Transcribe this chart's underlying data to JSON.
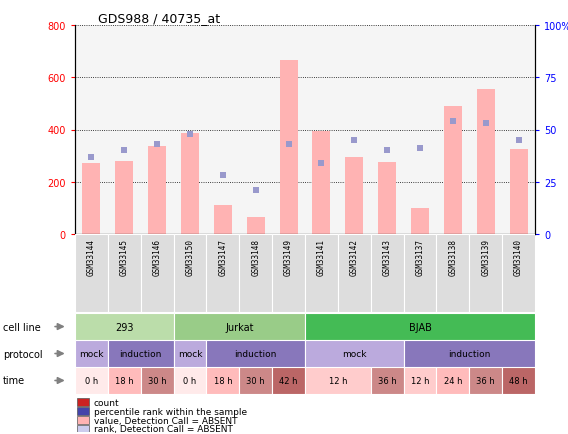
{
  "title": "GDS988 / 40735_at",
  "samples": [
    "GSM33144",
    "GSM33145",
    "GSM33146",
    "GSM33150",
    "GSM33147",
    "GSM33148",
    "GSM33149",
    "GSM33141",
    "GSM33142",
    "GSM33143",
    "GSM33137",
    "GSM33138",
    "GSM33139",
    "GSM33140"
  ],
  "bar_values": [
    270,
    280,
    335,
    385,
    110,
    65,
    665,
    395,
    295,
    275,
    100,
    490,
    555,
    325
  ],
  "rank_values": [
    37,
    40,
    43,
    48,
    28,
    21,
    43,
    34,
    45,
    40,
    41,
    54,
    53,
    45
  ],
  "ylim_left": [
    0,
    800
  ],
  "ylim_right": [
    0,
    100
  ],
  "yticks_left": [
    0,
    200,
    400,
    600,
    800
  ],
  "yticks_right": [
    0,
    25,
    50,
    75,
    100
  ],
  "bar_color": "#ffb3b3",
  "rank_color": "#9999cc",
  "cell_line_groups": [
    {
      "label": "293",
      "start": 0,
      "end": 3,
      "color": "#aaddaa"
    },
    {
      "label": "Jurkat",
      "start": 3,
      "end": 7,
      "color": "#88cc88"
    },
    {
      "label": "BJAB",
      "start": 7,
      "end": 14,
      "color": "#44bb55"
    }
  ],
  "protocol_groups": [
    {
      "label": "mock",
      "start": 0,
      "end": 1,
      "color": "#bbaadd"
    },
    {
      "label": "induction",
      "start": 1,
      "end": 3,
      "color": "#8877bb"
    },
    {
      "label": "mock",
      "start": 3,
      "end": 4,
      "color": "#bbaadd"
    },
    {
      "label": "induction",
      "start": 4,
      "end": 7,
      "color": "#8877bb"
    },
    {
      "label": "mock",
      "start": 7,
      "end": 10,
      "color": "#bbaadd"
    },
    {
      "label": "induction",
      "start": 10,
      "end": 14,
      "color": "#8877bb"
    }
  ],
  "time_spans": [
    {
      "label": "0 h",
      "start": 0,
      "end": 1,
      "color": "#ffeaea"
    },
    {
      "label": "18 h",
      "start": 1,
      "end": 2,
      "color": "#ffbbbb"
    },
    {
      "label": "30 h",
      "start": 2,
      "end": 3,
      "color": "#cc8888"
    },
    {
      "label": "0 h",
      "start": 3,
      "end": 4,
      "color": "#ffeaea"
    },
    {
      "label": "18 h",
      "start": 4,
      "end": 5,
      "color": "#ffbbbb"
    },
    {
      "label": "30 h",
      "start": 5,
      "end": 6,
      "color": "#cc8888"
    },
    {
      "label": "42 h",
      "start": 6,
      "end": 7,
      "color": "#bb6666"
    },
    {
      "label": "12 h",
      "start": 7,
      "end": 9,
      "color": "#ffcccc"
    },
    {
      "label": "36 h",
      "start": 9,
      "end": 10,
      "color": "#cc8888"
    },
    {
      "label": "12 h",
      "start": 10,
      "end": 11,
      "color": "#ffcccc"
    },
    {
      "label": "24 h",
      "start": 11,
      "end": 12,
      "color": "#ffbbbb"
    },
    {
      "label": "36 h",
      "start": 12,
      "end": 13,
      "color": "#cc8888"
    },
    {
      "label": "48 h",
      "start": 13,
      "end": 14,
      "color": "#bb6666"
    }
  ],
  "left_labels": [
    "cell line",
    "protocol",
    "time"
  ],
  "legend_items": [
    {
      "label": "count",
      "color": "#cc2222"
    },
    {
      "label": "percentile rank within the sample",
      "color": "#4444aa"
    },
    {
      "label": "value, Detection Call = ABSENT",
      "color": "#ffb3b3"
    },
    {
      "label": "rank, Detection Call = ABSENT",
      "color": "#ccccee"
    }
  ],
  "fig_width": 5.68,
  "fig_height": 4.35,
  "bg_color": "#ffffff",
  "plot_bg": "#f5f5f5",
  "sample_label_bg": "#dddddd"
}
